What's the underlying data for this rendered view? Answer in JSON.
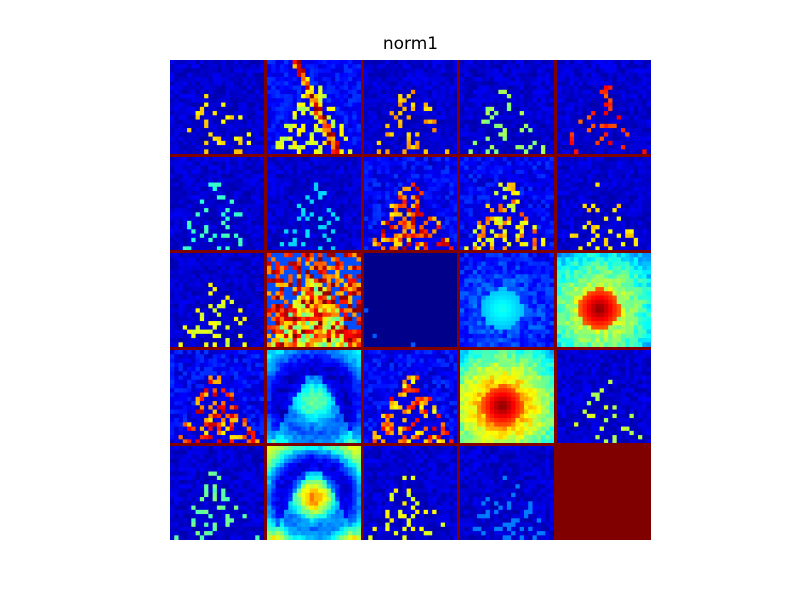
{
  "chart_data": {
    "type": "heatmap",
    "title": "norm1",
    "layout": {
      "rows": 5,
      "cols": 5
    },
    "colormap": "jet",
    "border_color": "#800000",
    "feature_maps": [
      {
        "index": 0,
        "mean": 0.12,
        "peak": 0.7,
        "pattern": "sparse"
      },
      {
        "index": 1,
        "mean": 0.22,
        "peak": 1.0,
        "pattern": "diagonal"
      },
      {
        "index": 2,
        "mean": 0.14,
        "peak": 0.75,
        "pattern": "sparse"
      },
      {
        "index": 3,
        "mean": 0.1,
        "peak": 0.55,
        "pattern": "sparse"
      },
      {
        "index": 4,
        "mean": 0.1,
        "peak": 0.9,
        "pattern": "sparse"
      },
      {
        "index": 5,
        "mean": 0.08,
        "peak": 0.45,
        "pattern": "sparse"
      },
      {
        "index": 6,
        "mean": 0.03,
        "peak": 0.35,
        "pattern": "sparse"
      },
      {
        "index": 7,
        "mean": 0.22,
        "peak": 0.95,
        "pattern": "streaks"
      },
      {
        "index": 8,
        "mean": 0.18,
        "peak": 0.8,
        "pattern": "streaks"
      },
      {
        "index": 9,
        "mean": 0.14,
        "peak": 0.7,
        "pattern": "sparse"
      },
      {
        "index": 10,
        "mean": 0.14,
        "peak": 0.65,
        "pattern": "sparse"
      },
      {
        "index": 11,
        "mean": 0.45,
        "peak": 1.0,
        "pattern": "dense"
      },
      {
        "index": 12,
        "mean": 0.01,
        "peak": 0.2,
        "pattern": "flat"
      },
      {
        "index": 13,
        "mean": 0.18,
        "peak": 0.4,
        "pattern": "blob"
      },
      {
        "index": 14,
        "mean": 0.65,
        "peak": 1.0,
        "pattern": "blob"
      },
      {
        "index": 15,
        "mean": 0.28,
        "peak": 0.95,
        "pattern": "streaks"
      },
      {
        "index": 16,
        "mean": 0.28,
        "peak": 0.45,
        "pattern": "smooth"
      },
      {
        "index": 17,
        "mean": 0.26,
        "peak": 0.9,
        "pattern": "streaks"
      },
      {
        "index": 18,
        "mean": 0.8,
        "peak": 1.0,
        "pattern": "blob"
      },
      {
        "index": 19,
        "mean": 0.15,
        "peak": 0.6,
        "pattern": "sparse"
      },
      {
        "index": 20,
        "mean": 0.12,
        "peak": 0.5,
        "pattern": "sparse"
      },
      {
        "index": 21,
        "mean": 0.5,
        "peak": 0.8,
        "pattern": "smooth"
      },
      {
        "index": 22,
        "mean": 0.15,
        "peak": 0.65,
        "pattern": "sparse"
      },
      {
        "index": 23,
        "mean": 0.06,
        "peak": 0.25,
        "pattern": "sparse"
      },
      {
        "index": 24,
        "mean": 1.0,
        "peak": 1.0,
        "pattern": "empty"
      }
    ]
  }
}
